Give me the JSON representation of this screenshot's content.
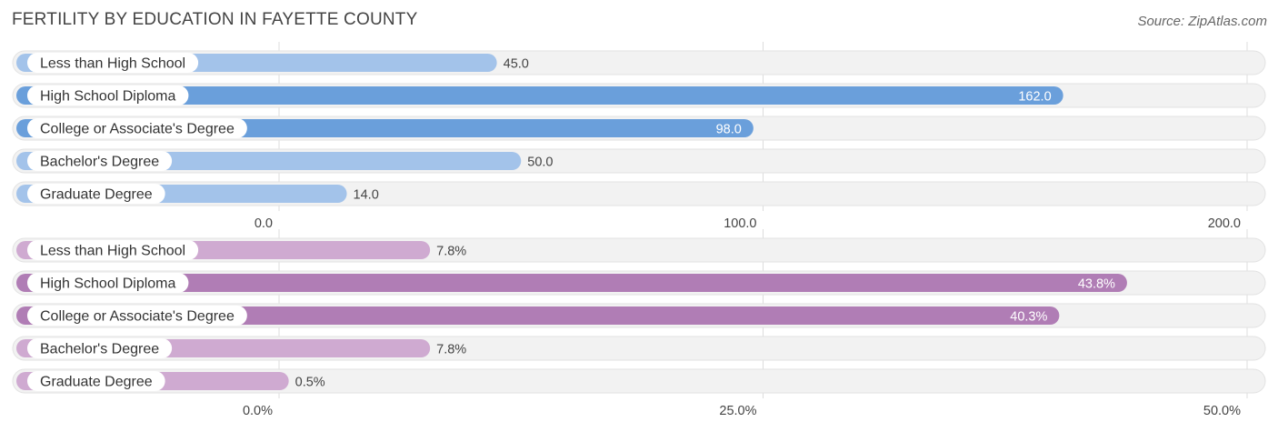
{
  "title": "FERTILITY BY EDUCATION IN FAYETTE COUNTY",
  "source": "Source: ZipAtlas.com",
  "chart_data": [
    {
      "type": "bar",
      "orientation": "horizontal",
      "categories": [
        "Less than High School",
        "High School Diploma",
        "College or Associate's Degree",
        "Bachelor's Degree",
        "Graduate Degree"
      ],
      "values": [
        45.0,
        162.0,
        98.0,
        50.0,
        14.0
      ],
      "value_labels": [
        "45.0",
        "162.0",
        "98.0",
        "50.0",
        "14.0"
      ],
      "xlim": [
        0,
        200
      ],
      "ticks": [
        0,
        100,
        200
      ],
      "tick_labels": [
        "0.0",
        "100.0",
        "200.0"
      ],
      "colors": {
        "strong": "#6a9fdb",
        "light": "#a3c3ea"
      },
      "grid": true
    },
    {
      "type": "bar",
      "orientation": "horizontal",
      "categories": [
        "Less than High School",
        "High School Diploma",
        "College or Associate's Degree",
        "Bachelor's Degree",
        "Graduate Degree"
      ],
      "values": [
        7.8,
        43.8,
        40.3,
        7.8,
        0.5
      ],
      "value_labels": [
        "7.8%",
        "43.8%",
        "40.3%",
        "7.8%",
        "0.5%"
      ],
      "xlim": [
        0,
        50
      ],
      "ticks": [
        0,
        25,
        50
      ],
      "tick_labels": [
        "0.0%",
        "25.0%",
        "50.0%"
      ],
      "colors": {
        "strong": "#b07db5",
        "light": "#cfaad1"
      },
      "grid": true
    }
  ]
}
